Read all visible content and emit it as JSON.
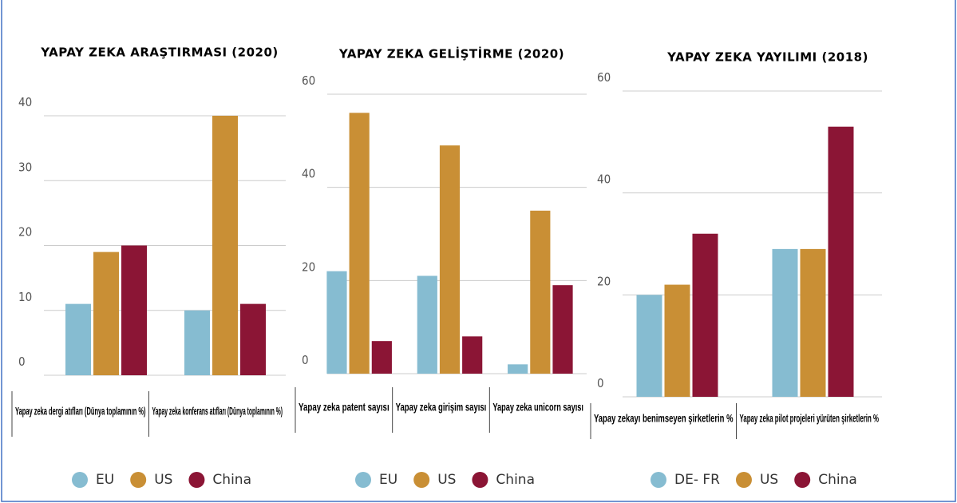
{
  "chart_data": [
    {
      "type": "bar",
      "title": "YAPAY ZEKA ARAŞTIRMASI (2020)",
      "categories": [
        "Yapay zeka dergi atıfları (Dünya toplamının %)",
        "Yapay zeka konferans atıfları (Dünya toplamının %)"
      ],
      "series": [
        {
          "name": "EU",
          "color": "#86bcd1",
          "values": [
            11,
            10
          ]
        },
        {
          "name": "US",
          "color": "#c98f35",
          "values": [
            19,
            40
          ]
        },
        {
          "name": "China",
          "color": "#8b1535",
          "values": [
            20,
            11
          ]
        }
      ],
      "ylim": [
        0,
        40
      ],
      "yticks": [
        0,
        10,
        20,
        30,
        40
      ],
      "grid": true,
      "legend": "bottom"
    },
    {
      "type": "bar",
      "title": "YAPAY ZEKA GELİŞTİRME (2020)",
      "categories": [
        "Yapay zeka patent sayısı",
        "Yapay zeka girişim sayısı",
        "Yapay zeka unicorn sayısı"
      ],
      "series": [
        {
          "name": "EU",
          "color": "#86bcd1",
          "values": [
            22,
            21,
            2
          ]
        },
        {
          "name": "US",
          "color": "#c98f35",
          "values": [
            56,
            49,
            35
          ]
        },
        {
          "name": "China",
          "color": "#8b1535",
          "values": [
            7,
            8,
            19
          ]
        }
      ],
      "ylim": [
        0,
        60
      ],
      "yticks": [
        0,
        20,
        40,
        60
      ],
      "grid": true,
      "legend": "bottom"
    },
    {
      "type": "bar",
      "title": "YAPAY ZEKA YAYILIMI (2018)",
      "categories": [
        "Yapay zekayı benimseyen şirketlerin %",
        "Yapay zeka pilot projeleri yürüten şirketlerin %"
      ],
      "series": [
        {
          "name": "DE- FR",
          "color": "#86bcd1",
          "values": [
            20,
            29
          ]
        },
        {
          "name": "US",
          "color": "#c98f35",
          "values": [
            22,
            29
          ]
        },
        {
          "name": "China",
          "color": "#8b1535",
          "values": [
            32,
            53
          ]
        }
      ],
      "ylim": [
        0,
        60
      ],
      "yticks": [
        0,
        20,
        40,
        60
      ],
      "grid": true,
      "legend": "bottom"
    }
  ]
}
